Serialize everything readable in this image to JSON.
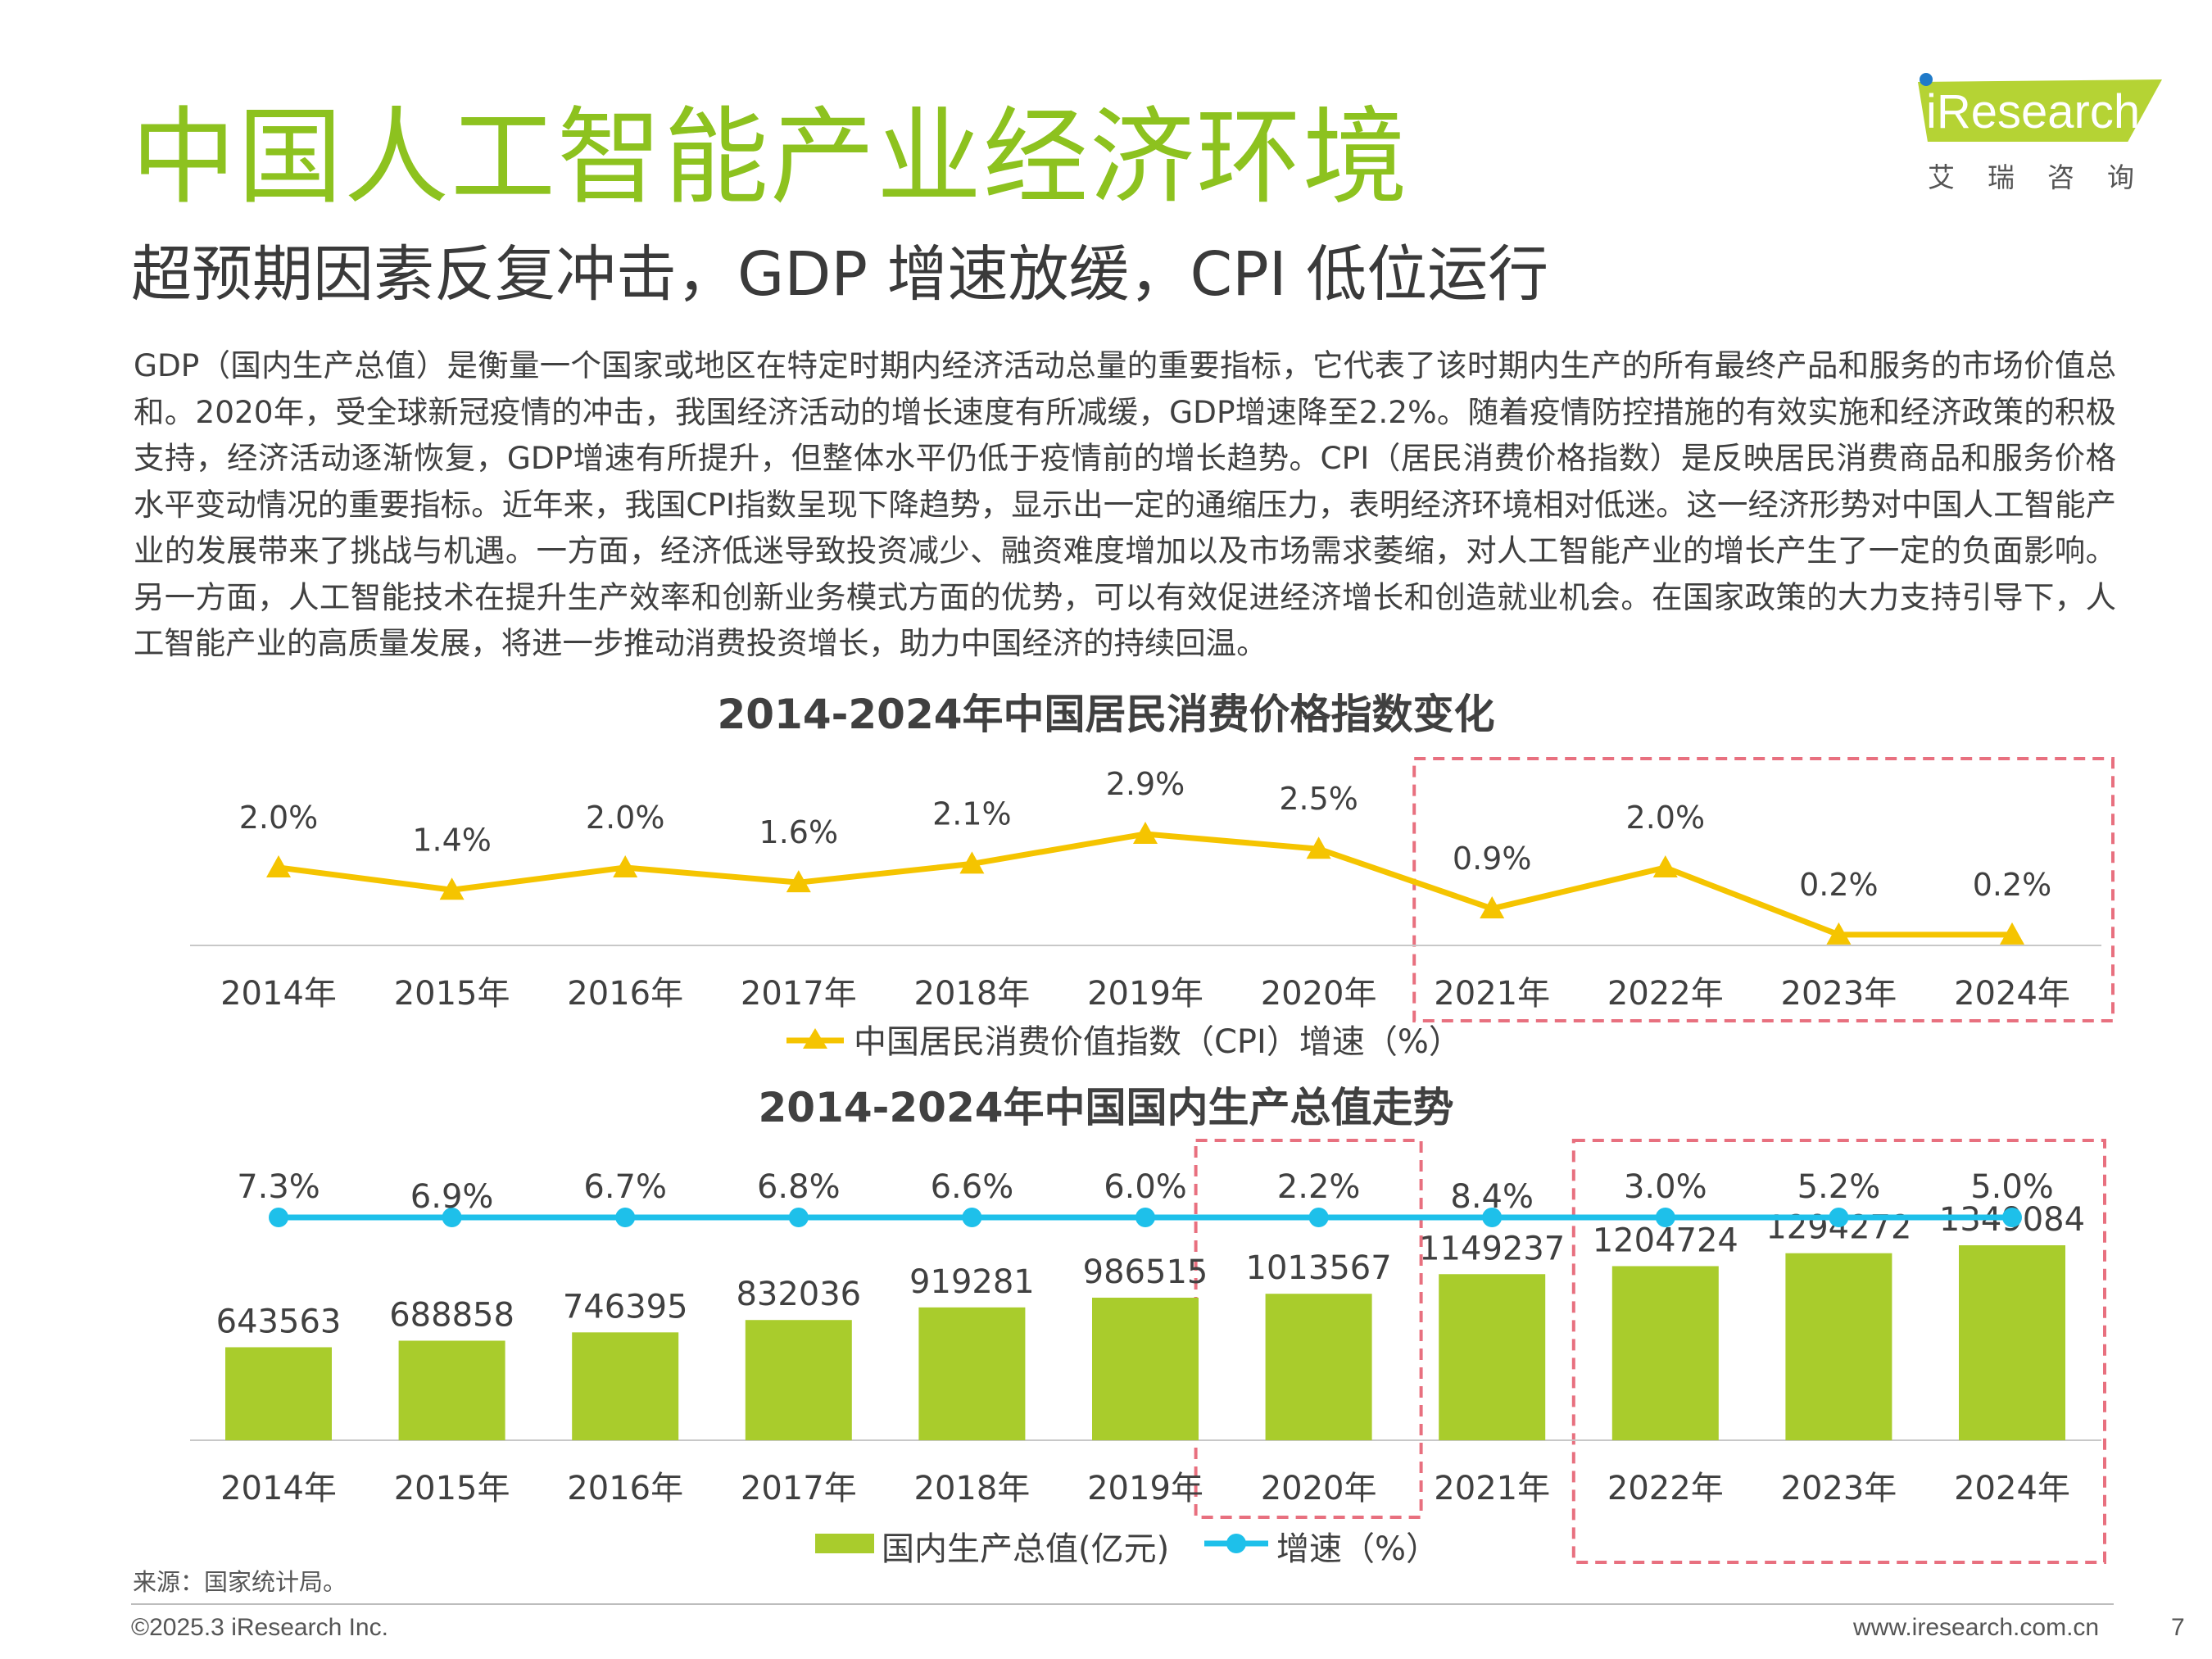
{
  "page": {
    "title": "中国人工智能产业经济环境",
    "subtitle": "超预期因素反复冲击，GDP 增速放缓，CPI 低位运行",
    "body": "GDP（国内生产总值）是衡量一个国家或地区在特定时期内经济活动总量的重要指标，它代表了该时期内生产的所有最终产品和服务的市场价值总和。2020年，受全球新冠疫情的冲击，我国经济活动的增长速度有所减缓，GDP增速降至2.2%。随着疫情防控措施的有效实施和经济政策的积极支持，经济活动逐渐恢复，GDP增速有所提升，但整体水平仍低于疫情前的增长趋势。CPI（居民消费价格指数）是反映居民消费商品和服务价格水平变动情况的重要指标。近年来，我国CPI指数呈现下降趋势，显示出一定的通缩压力，表明经济环境相对低迷。这一经济形势对中国人工智能产业的发展带来了挑战与机遇。一方面，经济低迷导致投资减少、融资难度增加以及市场需求萎缩，对人工智能产业的增长产生了一定的负面影响。另一方面，人工智能技术在提升生产效率和创新业务模式方面的优势，可以有效促进经济增长和创造就业机会。在国家政策的大力支持引导下，人工智能产业的高质量发展，将进一步推动消费投资增长，助力中国经济的持续回温。",
    "source": "来源：国家统计局。",
    "copyright": "©2025.3 iResearch Inc.",
    "website": "www.iresearch.com.cn",
    "page_number": "7"
  },
  "logo": {
    "wordmark": "iResearch",
    "chinese": "艾瑞咨询",
    "color": "#b5d334"
  },
  "colors": {
    "cpi_line": "#f5c400",
    "gdp_bar": "#a9cc2c",
    "growth_line": "#1ec0ea",
    "highlight_box": "#e8707f",
    "title_green": "#8dc21f"
  },
  "chart_data": [
    {
      "type": "line",
      "title": "2014-2024年中国居民消费价格指数变化",
      "categories": [
        "2014年",
        "2015年",
        "2016年",
        "2017年",
        "2018年",
        "2019年",
        "2020年",
        "2021年",
        "2022年",
        "2023年",
        "2024年"
      ],
      "series": [
        {
          "name": "中国居民消费价值指数（CPI）增速（%）",
          "values": [
            2.0,
            1.4,
            2.0,
            1.6,
            2.1,
            2.9,
            2.5,
            0.9,
            2.0,
            0.2,
            0.2
          ],
          "labels": [
            "2.0%",
            "1.4%",
            "2.0%",
            "1.6%",
            "2.1%",
            "2.9%",
            "2.5%",
            "0.9%",
            "2.0%",
            "0.2%",
            "0.2%"
          ],
          "marker": "triangle",
          "color": "#f5c400"
        }
      ],
      "highlight_categories": [
        "2021年",
        "2024年"
      ],
      "legend_position": "bottom",
      "grid": false
    },
    {
      "type": "bar",
      "title": "2014-2024年中国国内生产总值走势",
      "categories": [
        "2014年",
        "2015年",
        "2016年",
        "2017年",
        "2018年",
        "2019年",
        "2020年",
        "2021年",
        "2022年",
        "2023年",
        "2024年"
      ],
      "series": [
        {
          "name": "国内生产总值(亿元)",
          "type": "bar",
          "values": [
            643563,
            688858,
            746395,
            832036,
            919281,
            986515,
            1013567,
            1149237,
            1204724,
            1294272,
            1349084
          ],
          "color": "#a9cc2c"
        },
        {
          "name": "增速（%）",
          "type": "line",
          "values": [
            7.3,
            6.9,
            6.7,
            6.8,
            6.6,
            6.0,
            2.2,
            8.4,
            3.0,
            5.2,
            5.0
          ],
          "labels": [
            "7.3%",
            "6.9%",
            "6.7%",
            "6.8%",
            "6.6%",
            "6.0%",
            "2.2%",
            "8.4%",
            "3.0%",
            "5.2%",
            "5.0%"
          ],
          "marker": "circle",
          "color": "#1ec0ea"
        }
      ],
      "highlight_categories": [
        [
          "2020年",
          "2020年"
        ],
        [
          "2022年",
          "2024年"
        ]
      ],
      "legend_position": "bottom",
      "grid": false
    }
  ]
}
